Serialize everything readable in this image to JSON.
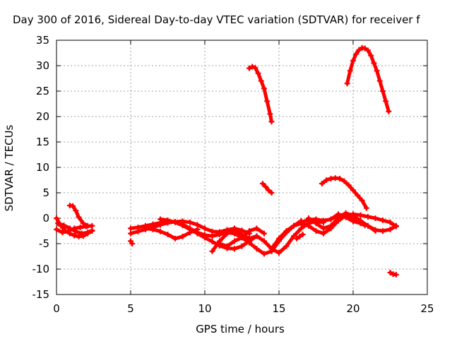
{
  "chart_data": {
    "type": "scatter",
    "title": "Day 300 of 2016, Sidereal Day-to-day VTEC variation (SDTVAR) for receiver f",
    "xlabel": "GPS time / hours",
    "ylabel": "SDTVAR / TECUs",
    "xlim": [
      0,
      25
    ],
    "ylim": [
      -15,
      35
    ],
    "xticks": [
      "0",
      "5",
      "10",
      "15",
      "20",
      "25"
    ],
    "yticks": [
      "-15",
      "-10",
      "-5",
      "0",
      "5",
      "10",
      "15",
      "20",
      "25",
      "30",
      "35"
    ],
    "grid": true,
    "marker_color": "#ff0000",
    "marker": "plus",
    "series": [
      {
        "x": [
          0.0,
          0.3,
          0.6,
          0.9,
          1.2,
          1.5,
          1.8,
          2.1,
          2.4
        ],
        "y": [
          0.0,
          -1.5,
          -2.5,
          -3.0,
          -3.4,
          -3.6,
          -3.5,
          -3.0,
          -2.5
        ]
      },
      {
        "x": [
          0.0,
          0.4,
          0.8,
          1.2,
          1.6,
          2.0,
          2.4
        ],
        "y": [
          -2.2,
          -2.8,
          -2.5,
          -2.0,
          -1.8,
          -1.6,
          -1.5
        ]
      },
      {
        "x": [
          0.9,
          1.1,
          1.3,
          1.5,
          1.8,
          2.1
        ],
        "y": [
          2.5,
          2.4,
          1.5,
          0.2,
          -1.0,
          -1.5
        ]
      },
      {
        "x": [
          0.1,
          0.5,
          0.9,
          1.3,
          1.7,
          2.1,
          2.4
        ],
        "y": [
          -1.0,
          -1.4,
          -2.0,
          -2.6,
          -3.0,
          -2.8,
          -2.4
        ]
      },
      {
        "x": [
          5.0,
          5.1
        ],
        "y": [
          -4.5,
          -5.0
        ]
      },
      {
        "x": [
          5.0,
          5.5,
          6.0,
          6.5,
          7.0,
          7.5,
          8.0,
          8.5,
          9.0,
          9.5,
          10.0,
          10.5,
          11.0,
          11.5,
          12.0,
          12.5,
          13.0,
          13.5,
          14.0,
          14.5,
          15.0,
          15.5,
          16.0,
          16.5
        ],
        "y": [
          -2.0,
          -1.8,
          -1.5,
          -1.2,
          -0.9,
          -0.6,
          -0.7,
          -1.2,
          -2.0,
          -2.8,
          -3.3,
          -3.5,
          -3.2,
          -2.8,
          -3.0,
          -3.8,
          -4.8,
          -6.0,
          -7.0,
          -6.5,
          -4.5,
          -2.8,
          -1.5,
          -0.5
        ]
      },
      {
        "x": [
          5.0,
          5.5,
          6.0,
          6.5,
          7.0,
          7.5,
          8.0,
          8.5,
          9.0,
          9.5,
          10.0,
          10.5,
          11.0,
          11.5,
          12.0,
          12.5,
          13.0
        ],
        "y": [
          -3.0,
          -2.6,
          -2.2,
          -1.8,
          -1.3,
          -0.9,
          -0.7,
          -0.6,
          -0.8,
          -1.3,
          -2.0,
          -2.6,
          -2.7,
          -2.3,
          -2.0,
          -2.4,
          -3.0
        ]
      },
      {
        "x": [
          6.0,
          6.5,
          7.0,
          7.5,
          8.0,
          8.5,
          9.0,
          9.5
        ],
        "y": [
          -2.0,
          -2.2,
          -2.6,
          -3.2,
          -4.0,
          -3.6,
          -2.8,
          -2.2
        ]
      },
      {
        "x": [
          7.0,
          7.5,
          8.0,
          8.5,
          9.0,
          9.5,
          10.0,
          10.5,
          11.0,
          11.5,
          12.0,
          12.5,
          13.0,
          13.5,
          14.0,
          14.5,
          15.0,
          15.5,
          16.0,
          16.5,
          17.0,
          17.5,
          18.0
        ],
        "y": [
          -0.2,
          -0.4,
          -0.8,
          -1.4,
          -2.2,
          -3.0,
          -3.8,
          -4.6,
          -5.4,
          -5.9,
          -6.0,
          -5.5,
          -4.5,
          -3.5,
          -4.5,
          -6.0,
          -6.8,
          -5.5,
          -3.5,
          -2.0,
          -1.0,
          -0.6,
          -0.8
        ]
      },
      {
        "x": [
          10.5,
          11.0,
          11.5,
          12.0,
          12.5,
          13.0,
          13.5
        ],
        "y": [
          -6.5,
          -4.5,
          -3.0,
          -2.5,
          -3.2,
          -4.0,
          -3.5
        ]
      },
      {
        "x": [
          11.0,
          11.5,
          12.0,
          12.5,
          13.0,
          13.5,
          14.0
        ],
        "y": [
          -5.0,
          -5.5,
          -4.5,
          -3.8,
          -2.5,
          -2.0,
          -3.0
        ]
      },
      {
        "x": [
          14.5,
          15.0,
          15.5,
          16.0,
          16.5,
          17.0,
          17.5,
          18.0,
          18.5,
          19.0,
          19.5,
          20.0,
          20.5,
          21.0,
          21.5,
          22.0,
          22.5,
          22.9
        ],
        "y": [
          -6.0,
          -4.0,
          -2.5,
          -1.5,
          -1.0,
          -1.5,
          -2.5,
          -3.0,
          -2.0,
          -0.5,
          0.5,
          0.8,
          0.6,
          0.3,
          0.0,
          -0.4,
          -0.8,
          -1.6
        ]
      },
      {
        "x": [
          15.5,
          16.0,
          16.5,
          17.0,
          17.5,
          18.0,
          18.5,
          19.0,
          19.5,
          20.0,
          20.5,
          21.0,
          21.5,
          22.0,
          22.5,
          22.9
        ],
        "y": [
          -2.5,
          -1.5,
          -0.8,
          -0.3,
          -0.2,
          -0.5,
          -0.2,
          0.5,
          0.8,
          0.2,
          -0.8,
          -1.5,
          -2.3,
          -2.5,
          -2.2,
          -1.5
        ]
      },
      {
        "x": [
          16.2,
          16.4,
          16.6
        ],
        "y": [
          -4.0,
          -3.6,
          -3.2
        ]
      },
      {
        "x": [
          17.0,
          17.5,
          18.0,
          18.5,
          19.0,
          19.5,
          20.0,
          20.5,
          21.0,
          21.5
        ],
        "y": [
          0.0,
          -1.0,
          -2.0,
          -1.5,
          0.0,
          1.0,
          0.5,
          -0.5,
          -1.5,
          -2.5
        ]
      },
      {
        "x": [
          18.0,
          18.5,
          19.0,
          19.5,
          20.0,
          20.5,
          20.8
        ],
        "y": [
          -0.5,
          -0.2,
          0.8,
          0.2,
          -0.6,
          -1.0,
          -1.4
        ]
      },
      {
        "x": [
          13.0,
          13.2,
          13.4,
          13.6,
          13.8,
          14.0,
          14.2,
          14.4,
          14.5
        ],
        "y": [
          29.5,
          29.8,
          29.6,
          28.5,
          27.0,
          25.5,
          23.0,
          20.5,
          19.0
        ]
      },
      {
        "x": [
          13.9,
          14.1,
          14.3,
          14.5
        ],
        "y": [
          6.8,
          6.2,
          5.5,
          5.0
        ]
      },
      {
        "x": [
          17.9,
          18.2,
          18.5,
          18.8,
          19.1,
          19.4,
          19.7,
          20.0,
          20.3,
          20.6,
          20.9
        ],
        "y": [
          6.8,
          7.5,
          7.8,
          7.9,
          7.8,
          7.3,
          6.5,
          5.5,
          4.5,
          3.5,
          2.0
        ]
      },
      {
        "x": [
          19.6,
          19.8,
          20.0,
          20.2,
          20.4,
          20.6,
          20.8,
          21.0,
          21.2,
          21.4,
          21.6,
          21.8,
          22.0,
          22.2,
          22.4
        ],
        "y": [
          26.5,
          29.0,
          31.0,
          32.3,
          33.1,
          33.5,
          33.4,
          33.0,
          32.0,
          30.5,
          29.0,
          27.0,
          25.0,
          23.0,
          21.0
        ]
      },
      {
        "x": [
          22.5,
          22.7,
          22.9
        ],
        "y": [
          -10.7,
          -11.0,
          -11.1
        ]
      }
    ]
  }
}
